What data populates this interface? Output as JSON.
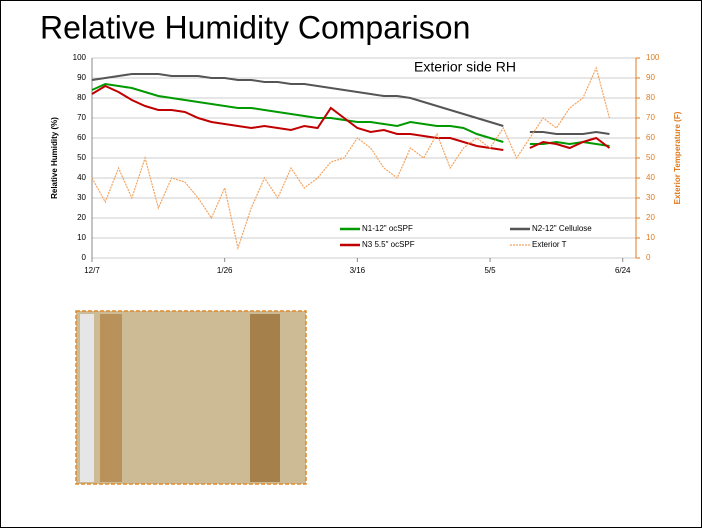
{
  "chart_data": {
    "type": "line",
    "title": "Relative Humidity Comparison",
    "annotation": "Exterior side RH",
    "y_label": "Relative Humidity (%)",
    "y2_label": "Exterior Temperature (F)",
    "x": [
      0,
      5,
      10,
      15,
      20,
      25,
      30,
      35,
      40,
      45,
      50,
      55,
      60,
      65,
      70,
      75,
      80,
      85,
      90,
      95,
      100,
      105,
      110,
      115,
      120,
      125,
      130,
      135,
      140,
      145,
      150,
      155,
      160,
      165,
      170,
      175,
      180,
      185,
      190,
      195
    ],
    "xlim": [
      0,
      205
    ],
    "xticks": [
      {
        "value": 0,
        "label": "12/7"
      },
      {
        "value": 50,
        "label": "1/26"
      },
      {
        "value": 100,
        "label": "3/16"
      },
      {
        "value": 150,
        "label": "5/5"
      },
      {
        "value": 200,
        "label": "6/24"
      }
    ],
    "ylim": [
      0,
      100
    ],
    "yticks": [
      0,
      10,
      20,
      30,
      40,
      50,
      60,
      70,
      80,
      90,
      100
    ],
    "y2lim": [
      0,
      100
    ],
    "y2ticks": [
      0,
      10,
      20,
      30,
      40,
      50,
      60,
      70,
      80,
      90,
      100
    ],
    "grid": true,
    "series": [
      {
        "name": "N1-12\" ocSPF",
        "color": "#009900",
        "values": [
          84,
          87,
          86,
          85,
          83,
          81,
          80,
          79,
          78,
          77,
          76,
          75,
          75,
          74,
          73,
          72,
          71,
          70,
          70,
          69,
          68,
          68,
          67,
          66,
          68,
          67,
          66,
          66,
          65,
          62,
          60,
          58,
          null,
          57,
          57,
          58,
          57,
          58,
          57,
          56
        ]
      },
      {
        "name": "N2-12\" Cellulose",
        "color": "#555555",
        "values": [
          89,
          90,
          91,
          92,
          92,
          92,
          91,
          91,
          91,
          90,
          90,
          89,
          89,
          88,
          88,
          87,
          87,
          86,
          85,
          84,
          83,
          82,
          81,
          81,
          80,
          78,
          76,
          74,
          72,
          70,
          68,
          66,
          null,
          63,
          63,
          62,
          62,
          62,
          63,
          62
        ]
      },
      {
        "name": "N3 5.5\" ocSPF",
        "color": "#c00000",
        "values": [
          82,
          86,
          83,
          79,
          76,
          74,
          74,
          73,
          70,
          68,
          67,
          66,
          65,
          66,
          65,
          64,
          66,
          65,
          75,
          70,
          65,
          63,
          64,
          62,
          62,
          61,
          60,
          60,
          58,
          56,
          55,
          54,
          null,
          55,
          58,
          57,
          55,
          58,
          60,
          55
        ]
      },
      {
        "name": "Exterior T",
        "color": "#f4a460",
        "axis": "y2",
        "values": [
          40,
          28,
          45,
          30,
          50,
          25,
          40,
          38,
          30,
          20,
          35,
          5,
          25,
          40,
          30,
          45,
          35,
          40,
          48,
          50,
          60,
          55,
          45,
          40,
          55,
          50,
          62,
          45,
          55,
          60,
          55,
          65,
          50,
          60,
          70,
          65,
          75,
          80,
          95,
          70
        ]
      }
    ]
  }
}
